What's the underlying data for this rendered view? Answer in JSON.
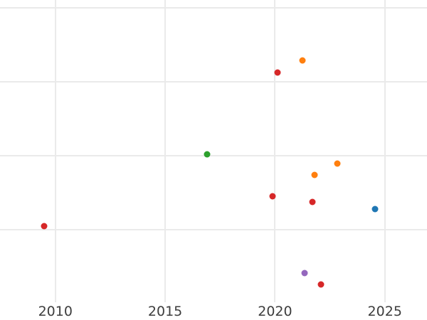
{
  "figure": {
    "background_color": "#ffffff",
    "gridline_color": "#eaeaea",
    "tick_label_color": "#3d3d3d"
  },
  "chart_data": {
    "type": "scatter",
    "title": "",
    "xlabel": "",
    "ylabel": "",
    "grid": true,
    "legend": false,
    "xlim": [
      2007.48,
      2026.92
    ],
    "ylim": [
      0.02,
      4.11
    ],
    "x_ticks": [
      {
        "value": 2010,
        "label": "2010"
      },
      {
        "value": 2015,
        "label": "2015"
      },
      {
        "value": 2020,
        "label": "2020"
      },
      {
        "value": 2025,
        "label": "2025"
      }
    ],
    "y_ticks": [],
    "y_gridlines_unlabeled_units": [
      1,
      2,
      3,
      4
    ],
    "marker_diameter_px": 9,
    "series": [
      {
        "name": "red",
        "color": "#d62728",
        "points": [
          {
            "x": 2009.5,
            "y": 1.05
          },
          {
            "x": 2019.9,
            "y": 1.45
          },
          {
            "x": 2020.1,
            "y": 3.13
          },
          {
            "x": 2021.7,
            "y": 1.38
          },
          {
            "x": 2022.1,
            "y": 0.26
          }
        ]
      },
      {
        "name": "orange",
        "color": "#ff7f0e",
        "points": [
          {
            "x": 2021.25,
            "y": 3.29
          },
          {
            "x": 2021.8,
            "y": 1.74
          },
          {
            "x": 2022.85,
            "y": 1.9
          }
        ]
      },
      {
        "name": "green",
        "color": "#2ca02c",
        "points": [
          {
            "x": 2016.9,
            "y": 2.02
          }
        ]
      },
      {
        "name": "blue",
        "color": "#1f77b4",
        "points": [
          {
            "x": 2024.55,
            "y": 1.28
          }
        ]
      },
      {
        "name": "purple",
        "color": "#9467bd",
        "points": [
          {
            "x": 2021.35,
            "y": 0.41
          }
        ]
      }
    ]
  }
}
